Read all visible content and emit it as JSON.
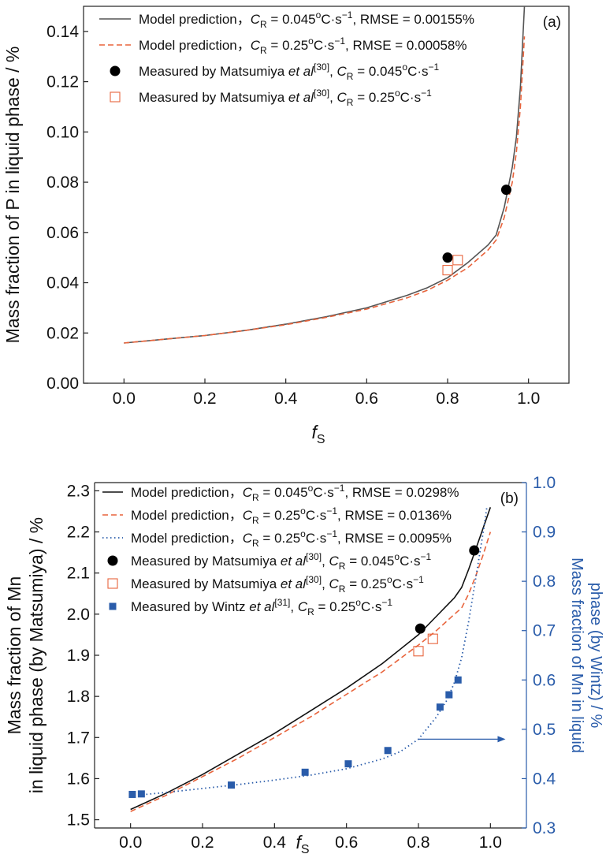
{
  "chart_data": [
    {
      "type": "line",
      "panel_label": "(a)",
      "xlabel": "f",
      "xlabel_sub": "S",
      "ylabel": "Mass fraction of P in liquid phase / %",
      "xlim": [
        -0.1,
        1.1
      ],
      "ylim": [
        0,
        0.15
      ],
      "xticks": [
        "0.0",
        "0.2",
        "0.4",
        "0.6",
        "0.8",
        "1.0"
      ],
      "yticks": [
        "0.00",
        "0.02",
        "0.04",
        "0.06",
        "0.08",
        "0.10",
        "0.12",
        "0.14"
      ],
      "legend_position": "top-left",
      "series": [
        {
          "name": "Model prediction，C_R = 0.045°C·s⁻¹, RMSE = 0.00155%",
          "legend": {
            "pre": "Model prediction，",
            "v": "C",
            "sub": "R",
            "mid": " = 0.045",
            "sup": "o",
            "post": "C·s",
            "sup2": "−1",
            "tail": ", RMSE = 0.00155%"
          },
          "style": "solid",
          "color": "#555555",
          "x": [
            0.0,
            0.1,
            0.2,
            0.3,
            0.4,
            0.5,
            0.6,
            0.7,
            0.75,
            0.8,
            0.85,
            0.9,
            0.92,
            0.94,
            0.96,
            0.97,
            0.98,
            0.99
          ],
          "y": [
            0.016,
            0.0175,
            0.019,
            0.021,
            0.0235,
            0.0265,
            0.03,
            0.035,
            0.038,
            0.042,
            0.048,
            0.055,
            0.059,
            0.07,
            0.086,
            0.098,
            0.118,
            0.15
          ]
        },
        {
          "name": "Model prediction，C_R = 0.25°C·s⁻¹, RMSE = 0.00058%",
          "legend": {
            "pre": "Model prediction，",
            "v": "C",
            "sub": "R",
            "mid": " = 0.25",
            "sup": "o",
            "post": "C·s",
            "sup2": "−1",
            "tail": ", RMSE = 0.00058%"
          },
          "style": "dashed",
          "color": "#e8643c",
          "x": [
            0.0,
            0.1,
            0.2,
            0.3,
            0.4,
            0.5,
            0.6,
            0.7,
            0.75,
            0.8,
            0.85,
            0.9,
            0.92,
            0.94,
            0.96,
            0.97,
            0.98,
            0.99
          ],
          "y": [
            0.016,
            0.0175,
            0.019,
            0.021,
            0.0233,
            0.0262,
            0.0295,
            0.034,
            0.037,
            0.041,
            0.046,
            0.053,
            0.057,
            0.066,
            0.08,
            0.092,
            0.11,
            0.138
          ]
        },
        {
          "name": "Measured by Matsumiya et al [30], C_R = 0.045°C·s⁻¹",
          "legend": {
            "pre": "Measured by Matsumiya ",
            "it": "et al",
            "ref": "[30]",
            "pre2": ", ",
            "v": "C",
            "sub": "R",
            "mid": " = 0.045",
            "sup": "o",
            "post": "C·s",
            "sup2": "−1",
            "tail": ""
          },
          "style": "filled-circle",
          "color": "#000000",
          "x": [
            0.8,
            0.945
          ],
          "y": [
            0.05,
            0.077
          ]
        },
        {
          "name": "Measured by Matsumiya et al [30], C_R = 0.25°C·s⁻¹",
          "legend": {
            "pre": "Measured by Matsumiya ",
            "it": "et al",
            "ref": "[30]",
            "pre2": ", ",
            "v": "C",
            "sub": "R",
            "mid": " = 0.25",
            "sup": "o",
            "post": "C·s",
            "sup2": "−1",
            "tail": ""
          },
          "style": "open-square",
          "color": "#e8643c",
          "x": [
            0.8,
            0.825
          ],
          "y": [
            0.045,
            0.049
          ]
        }
      ]
    },
    {
      "type": "line",
      "panel_label": "(b)",
      "xlabel": "f",
      "xlabel_sub": "S",
      "ylabel": [
        "Mass fraction of Mn",
        "in liquid phase (by Matsumiya) / %"
      ],
      "y2label": [
        "Mass fraction of Mn in liquid",
        "phase (by Wintz) / %"
      ],
      "xlim": [
        -0.1,
        1.1
      ],
      "ylim": [
        1.48,
        2.32
      ],
      "y2lim": [
        0.3,
        1.0
      ],
      "xticks": [
        "0.0",
        "0.2",
        "0.4",
        "0.6",
        "0.8",
        "1.0"
      ],
      "yticks": [
        "1.5",
        "1.6",
        "1.7",
        "1.8",
        "1.9",
        "2.0",
        "2.1",
        "2.2",
        "2.3"
      ],
      "y2ticks": [
        "0.3",
        "0.4",
        "0.5",
        "0.6",
        "0.7",
        "0.8",
        "0.9",
        "1.0"
      ],
      "legend_position": "top-left",
      "series": [
        {
          "name": "Model prediction，C_R = 0.045°C·s⁻¹, RMSE = 0.0298%",
          "legend": {
            "pre": "Model prediction，",
            "v": "C",
            "sub": "R",
            "mid": " = 0.045",
            "sup": "o",
            "post": "C·s",
            "sup2": "−1",
            "tail": ", RMSE = 0.0298%"
          },
          "style": "solid",
          "color": "#111111",
          "axis": "left",
          "x": [
            0.0,
            0.1,
            0.2,
            0.3,
            0.4,
            0.5,
            0.6,
            0.7,
            0.8,
            0.85,
            0.9,
            0.92,
            0.94,
            0.96,
            0.98,
            1.0
          ],
          "y": [
            1.525,
            1.565,
            1.61,
            1.66,
            1.71,
            1.765,
            1.82,
            1.88,
            1.95,
            1.995,
            2.04,
            2.065,
            2.11,
            2.16,
            2.21,
            2.26
          ]
        },
        {
          "name": "Model prediction，C_R = 0.25°C·s⁻¹, RMSE = 0.0136%",
          "legend": {
            "pre": "Model prediction，",
            "v": "C",
            "sub": "R",
            "mid": " = 0.25",
            "sup": "o",
            "post": "C·s",
            "sup2": "−1",
            "tail": ", RMSE = 0.0136%"
          },
          "style": "dashed",
          "color": "#e8643c",
          "axis": "left",
          "x": [
            0.0,
            0.1,
            0.2,
            0.3,
            0.4,
            0.5,
            0.6,
            0.7,
            0.8,
            0.85,
            0.9,
            0.92,
            0.94,
            0.96,
            0.98,
            1.0
          ],
          "y": [
            1.52,
            1.56,
            1.605,
            1.65,
            1.7,
            1.75,
            1.805,
            1.86,
            1.925,
            1.96,
            2.0,
            2.015,
            2.05,
            2.095,
            2.145,
            2.2
          ]
        },
        {
          "name": "Model prediction，C_R = 0.25°C·s⁻¹, RMSE = 0.0095%",
          "legend": {
            "pre": "Model prediction，",
            "v": "C",
            "sub": "R",
            "mid": " = 0.25",
            "sup": "o",
            "post": "C·s",
            "sup2": "−1",
            "tail": ", RMSE = 0.0095%"
          },
          "style": "dotted",
          "color": "#2a5caa",
          "axis": "right",
          "x": [
            0.0,
            0.1,
            0.2,
            0.3,
            0.4,
            0.5,
            0.6,
            0.7,
            0.75,
            0.8,
            0.85,
            0.88,
            0.9,
            0.92,
            0.94,
            0.96,
            0.98,
            0.99
          ],
          "y": [
            0.365,
            0.372,
            0.38,
            0.388,
            0.397,
            0.407,
            0.42,
            0.44,
            0.455,
            0.48,
            0.525,
            0.56,
            0.595,
            0.645,
            0.72,
            0.81,
            0.9,
            0.95
          ]
        },
        {
          "name": "Measured by Matsumiya et al [30], C_R = 0.045°C·s⁻¹",
          "legend": {
            "pre": "Measured by Matsumiya ",
            "it": "et al",
            "ref": "[30]",
            "pre2": ",   ",
            "v": "C",
            "sub": "R",
            "mid": " = 0.045",
            "sup": "o",
            "post": "C·s",
            "sup2": "−1",
            "tail": ""
          },
          "style": "filled-circle",
          "color": "#000000",
          "axis": "left",
          "x": [
            0.805,
            0.955
          ],
          "y": [
            1.965,
            2.155
          ]
        },
        {
          "name": "Measured by Matsumiya et al [30], C_R = 0.25°C·s⁻¹",
          "legend": {
            "pre": "Measured by Matsumiya ",
            "it": "et al",
            "ref": "[30]",
            "pre2": ",   ",
            "v": "C",
            "sub": "R",
            "mid": " = 0.25",
            "sup": "o",
            "post": "C·s",
            "sup2": "−1",
            "tail": ""
          },
          "style": "open-square",
          "color": "#e8643c",
          "axis": "left",
          "x": [
            0.8,
            0.84
          ],
          "y": [
            1.91,
            1.94
          ]
        },
        {
          "name": "Measured by Wintz et al [31], C_R = 0.25°C·s⁻¹",
          "legend": {
            "pre": "Measured by Wintz ",
            "it": "et al",
            "ref": "[31]",
            "pre2": ",   ",
            "v": "C",
            "sub": "R",
            "mid": " = 0.25",
            "sup": "o",
            "post": "C·s",
            "sup2": "−1",
            "tail": ""
          },
          "style": "filled-square",
          "color": "#2a5caa",
          "axis": "right",
          "x": [
            0.005,
            0.03,
            0.28,
            0.485,
            0.605,
            0.715,
            0.86,
            0.885,
            0.91
          ],
          "y": [
            0.368,
            0.369,
            0.387,
            0.413,
            0.43,
            0.457,
            0.545,
            0.57,
            0.6
          ]
        }
      ]
    }
  ]
}
